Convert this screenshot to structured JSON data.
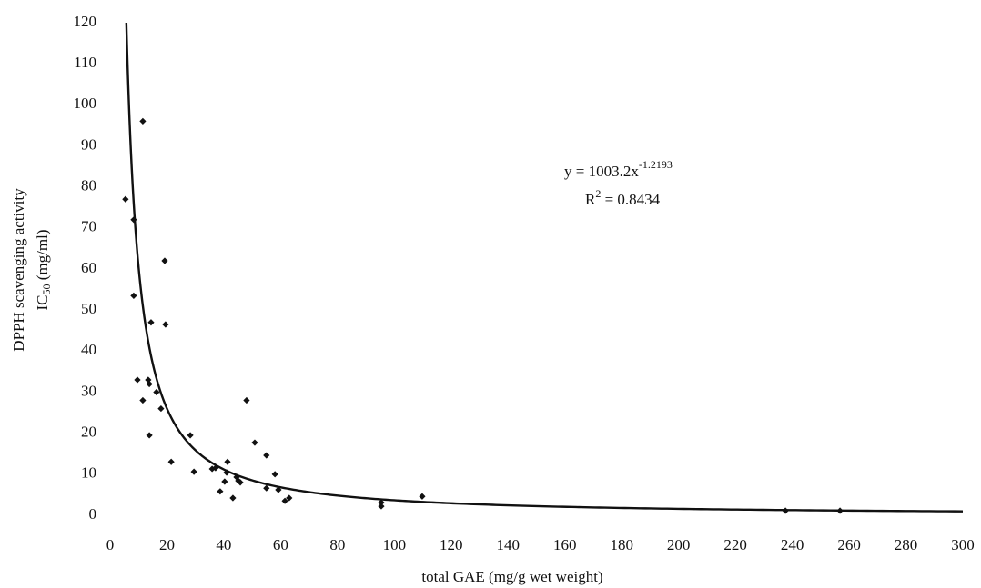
{
  "chart_data": {
    "type": "scatter",
    "x_label": "total GAE (mg/g wet weight)",
    "y_label": {
      "line1": "DPPH scavenging activity",
      "line2_main": "IC",
      "line2_sub": "50",
      "line2_rest": " (mg/ml)"
    },
    "series": [
      {
        "color": "#111111",
        "x": [
          5.4,
          8.3,
          8.3,
          11.5,
          9.6,
          11.5,
          13.4,
          13.8,
          14.4,
          13.8,
          16.3,
          17.9,
          19.2,
          19.5,
          21.5,
          28.2,
          29.5,
          35.9,
          37.1,
          38.7,
          40.3,
          41.3,
          41,
          43.2,
          44.5,
          45.1,
          45.8,
          48,
          50.9,
          55,
          55,
          58,
          59.2,
          61.5,
          63,
          95.4,
          95.4,
          109.8,
          237.6,
          256.8
        ],
        "values": [
          77,
          72,
          53.5,
          96,
          33,
          28,
          33,
          32,
          47,
          19.5,
          30,
          26,
          62,
          46.5,
          13,
          19.5,
          10.6,
          11.3,
          11.5,
          5.8,
          8.2,
          13,
          10.4,
          4.2,
          9.3,
          8.4,
          8,
          28,
          17.7,
          14.6,
          6.6,
          10,
          6.2,
          3.5,
          4.2,
          3.1,
          2.2,
          4.6,
          1.1,
          1.1
        ]
      }
    ],
    "trendline": {
      "type": "power",
      "coefficient": 1003.2,
      "exponent": -1.2193,
      "equation": "y = 1003.2x",
      "equation_exponent": "-1.2193",
      "r2_main": "R",
      "r2_sup": "2",
      "r2_rest": " = 0.8434"
    },
    "xlim": [
      0,
      300
    ],
    "xticks": [
      0,
      20,
      40,
      60,
      80,
      100,
      120,
      140,
      160,
      180,
      200,
      220,
      240,
      260,
      280,
      300
    ],
    "ylim": [
      0,
      120
    ],
    "yticks": [
      0,
      10,
      20,
      30,
      40,
      50,
      60,
      70,
      80,
      90,
      100,
      110,
      120
    ],
    "grid": false
  }
}
